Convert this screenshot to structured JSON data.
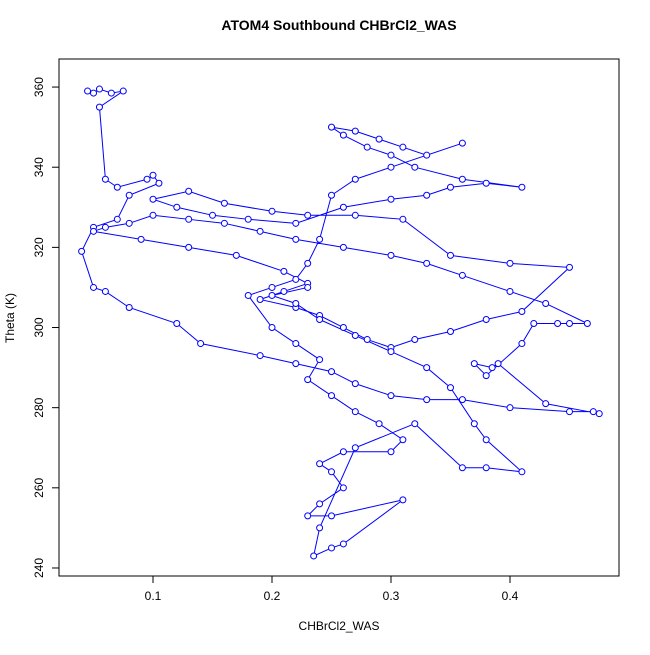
{
  "chart_data": {
    "type": "line",
    "title": "ATOM4 Southbound CHBrCl2_WAS",
    "x_label": "CHBrCl2_WAS",
    "y_label": "Theta (K)",
    "marker": "circle",
    "grid": false,
    "xlim": [
      0.021,
      0.4916
    ],
    "ylim": [
      238.0,
      367.0
    ],
    "xticks": [
      0.1,
      0.2,
      0.3,
      0.4
    ],
    "yticks": [
      240,
      260,
      280,
      300,
      320,
      340,
      360
    ],
    "series": [
      {
        "color": "#0000ff",
        "x": [
          0.045,
          0.05,
          0.055,
          0.065,
          0.075,
          0.055,
          0.06,
          0.07,
          0.095,
          0.1,
          0.105,
          0.08,
          0.07,
          0.05,
          0.04,
          0.05,
          0.06,
          0.08,
          0.12,
          0.14,
          0.19,
          0.22,
          0.25,
          0.27,
          0.3,
          0.33,
          0.36,
          0.4,
          0.45,
          0.47,
          0.475,
          0.43,
          0.39,
          0.385,
          0.37,
          0.38,
          0.41,
          0.42,
          0.44,
          0.45,
          0.465,
          0.43,
          0.4,
          0.36,
          0.33,
          0.3,
          0.26,
          0.22,
          0.19,
          0.16,
          0.13,
          0.1,
          0.08,
          0.06,
          0.05,
          0.09,
          0.13,
          0.17,
          0.21,
          0.23,
          0.21,
          0.19,
          0.22,
          0.24,
          0.26,
          0.28,
          0.3,
          0.32,
          0.35,
          0.38,
          0.41,
          0.45,
          0.4,
          0.35,
          0.31,
          0.27,
          0.23,
          0.2,
          0.16,
          0.13,
          0.1,
          0.12,
          0.15,
          0.18,
          0.22,
          0.26,
          0.3,
          0.33,
          0.35,
          0.38,
          0.41,
          0.36,
          0.32,
          0.3,
          0.28,
          0.26,
          0.25,
          0.27,
          0.29,
          0.31,
          0.33,
          0.36,
          0.3,
          0.27,
          0.25,
          0.24,
          0.23,
          0.22,
          0.2,
          0.18,
          0.2,
          0.22,
          0.24,
          0.23,
          0.25,
          0.27,
          0.29,
          0.31,
          0.3,
          0.26,
          0.24,
          0.25,
          0.26,
          0.24,
          0.23,
          0.25,
          0.31,
          0.26,
          0.25,
          0.235,
          0.24,
          0.27,
          0.32,
          0.36,
          0.38,
          0.41,
          0.38,
          0.37,
          0.35,
          0.33,
          0.3,
          0.27,
          0.24,
          0.22,
          0.2,
          0.23
        ],
        "values": [
          359,
          358.5,
          359.5,
          358.5,
          359,
          355,
          337,
          335,
          337,
          338,
          336,
          333,
          327,
          325,
          319,
          310,
          309,
          305,
          301,
          296,
          293,
          291,
          289,
          286,
          283,
          282,
          282,
          280,
          279,
          279,
          278.5,
          281,
          291,
          290,
          291,
          288,
          296,
          301,
          301,
          301,
          301,
          306,
          309,
          313,
          316,
          318,
          320,
          322,
          324,
          326,
          327,
          328,
          326,
          325,
          324,
          322,
          320,
          318,
          314,
          311,
          309,
          307,
          305,
          303,
          300,
          297,
          295,
          297,
          299,
          302,
          304,
          315,
          316,
          318,
          327,
          328,
          328,
          329,
          331,
          334,
          332,
          330,
          328,
          327,
          326,
          330,
          332,
          333,
          335,
          336,
          335,
          337,
          340,
          343,
          345,
          348,
          350,
          349,
          347,
          345,
          343,
          346,
          340,
          337,
          333,
          322,
          316,
          312,
          310,
          308,
          300,
          296,
          292,
          287,
          283,
          279,
          276,
          272,
          269,
          269,
          266,
          264,
          260,
          256,
          253,
          253,
          257,
          246,
          245,
          243,
          250,
          270,
          276,
          265,
          265,
          264,
          272,
          276,
          285,
          290,
          294,
          298,
          302,
          306,
          308,
          310
        ]
      }
    ]
  }
}
